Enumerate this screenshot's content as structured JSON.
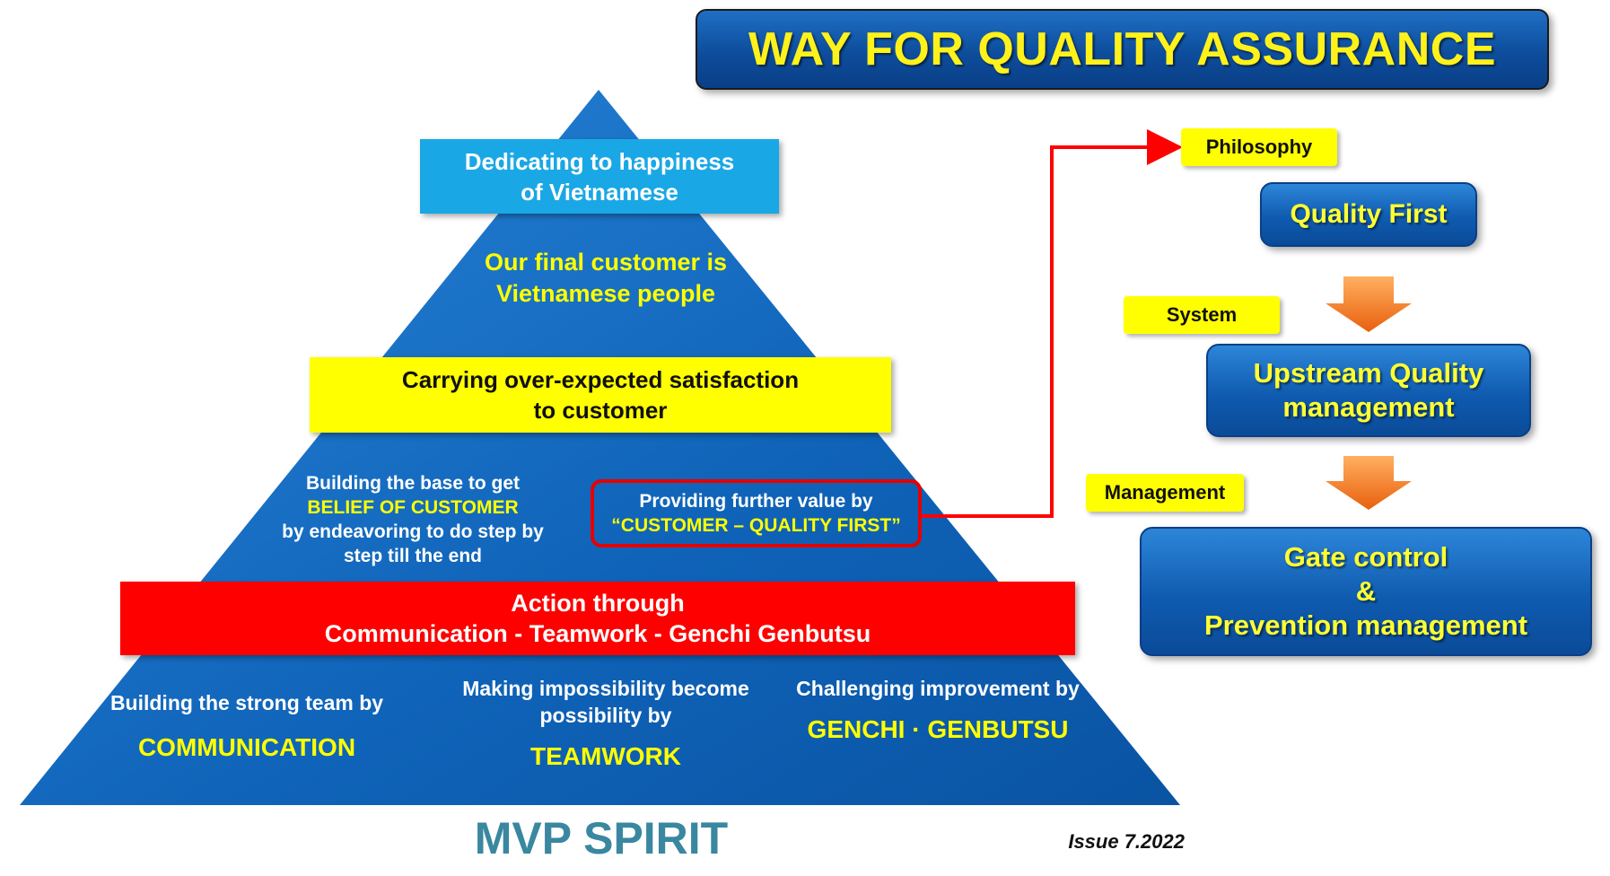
{
  "title": "WAY FOR QUALITY ASSURANCE",
  "pyramid": {
    "top_box": [
      "Dedicating to happiness",
      "of Vietnamese"
    ],
    "final_customer": [
      "Our final customer is",
      "Vietnamese people"
    ],
    "middle_box": [
      "Carrying over-expected satisfaction",
      "to customer"
    ],
    "belief": {
      "line1": "Building the base to get",
      "highlight": "BELIEF OF CUSTOMER",
      "line3": "by endeavoring to do step by",
      "line4": "step till the end"
    },
    "value": {
      "line1": "Providing further value by",
      "highlight": "“CUSTOMER – QUALITY FIRST”"
    },
    "action": [
      "Action through",
      "Communication -  Teamwork - Genchi Genbutsu"
    ],
    "base": [
      {
        "text": "Building the strong team by",
        "keyword": "COMMUNICATION"
      },
      {
        "text": "Making impossibility become possibility by",
        "keyword": "TEAMWORK"
      },
      {
        "text": "Challenging improvement by",
        "keyword": "GENCHI  ·  GENBUTSU"
      }
    ]
  },
  "footer": {
    "spirit": "MVP SPIRIT",
    "issue": "Issue 7.2022"
  },
  "right": {
    "labels": {
      "philosophy": "Philosophy",
      "system": "System",
      "management": "Management"
    },
    "quality_first": "Quality First",
    "upstream": [
      "Upstream Quality",
      "management"
    ],
    "gate": [
      "Gate control",
      "&",
      "Prevention management"
    ]
  },
  "colors": {
    "pyramid": "#1168c2",
    "yellow": "#ffff00",
    "red": "#ff0000",
    "cyan": "#1aa7e6",
    "arrow_orange": "#f07820"
  }
}
